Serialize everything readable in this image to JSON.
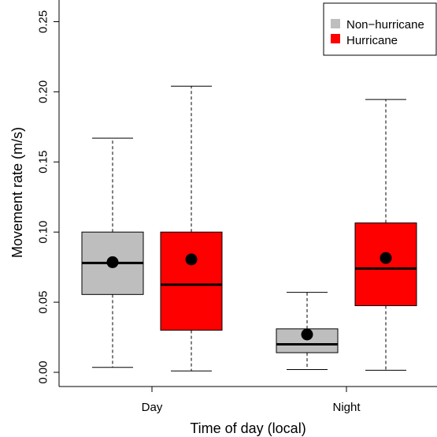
{
  "chart_data": {
    "type": "boxplot",
    "xlabel": "Time of day (local)",
    "ylabel": "Movement rate (m/s)",
    "ylim": [
      0.0,
      0.25
    ],
    "yticks": [
      "0.00",
      "0.05",
      "0.10",
      "0.15",
      "0.20",
      "0.25"
    ],
    "categories": [
      "Day",
      "Night"
    ],
    "legend": {
      "position": "top-right",
      "entries": [
        {
          "label": "Non−hurricane",
          "color": "#bebebe"
        },
        {
          "label": "Hurricane",
          "color": "#ff0000"
        }
      ]
    },
    "series": [
      {
        "name": "Non−hurricane",
        "color": "#bebebe",
        "boxes": [
          {
            "category": "Day",
            "min": 0.0035,
            "q1": 0.0555,
            "median": 0.078,
            "q3": 0.1,
            "max": 0.167,
            "mean": 0.0785
          },
          {
            "category": "Night",
            "min": 0.002,
            "q1": 0.014,
            "median": 0.02,
            "q3": 0.031,
            "max": 0.057,
            "mean": 0.027
          }
        ]
      },
      {
        "name": "Hurricane",
        "color": "#ff0000",
        "boxes": [
          {
            "category": "Day",
            "min": 0.001,
            "q1": 0.03,
            "median": 0.0625,
            "q3": 0.1,
            "max": 0.204,
            "mean": 0.0805
          },
          {
            "category": "Night",
            "min": 0.0015,
            "q1": 0.0475,
            "median": 0.074,
            "q3": 0.1065,
            "max": 0.1945,
            "mean": 0.0815
          }
        ]
      }
    ]
  }
}
